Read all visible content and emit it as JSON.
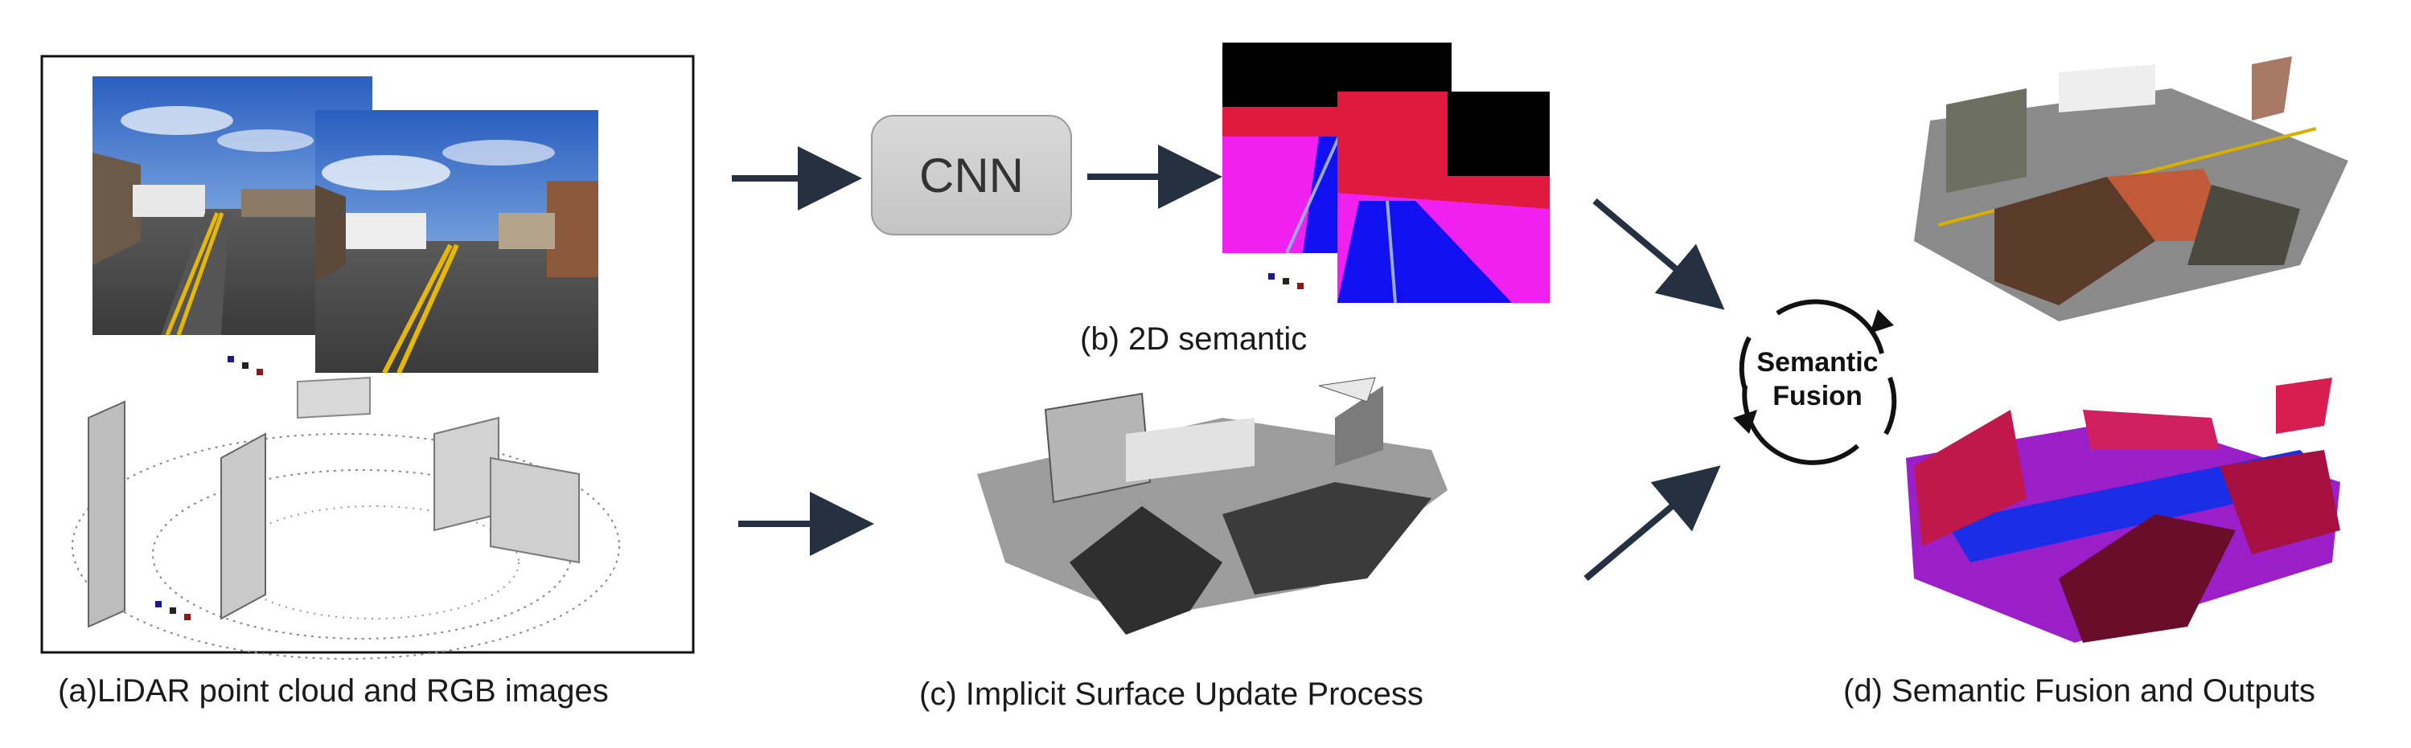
{
  "captions": {
    "a": "(a)LiDAR point cloud and RGB images",
    "b": "(b) 2D semantic",
    "c": "(c) Implicit Surface Update Process",
    "d": "(d) Semantic Fusion and Outputs"
  },
  "cnn_label": "CNN",
  "fusion": {
    "line1": "Semantic",
    "line2": "Fusion"
  },
  "colors": {
    "arrow": "#253040",
    "sky": "#3d6fc4",
    "road": "#4a4a4a",
    "lane": "#e6b800",
    "seg_black": "#000000",
    "seg_red": "#e0193f",
    "seg_magenta": "#f020f0",
    "seg_blue": "#1010f0",
    "out_red": "#c0184a",
    "out_purple": "#9a1fc8",
    "out_blue": "#1a2ee8"
  },
  "icons": [
    "ellipsis-dots-icon",
    "cycle-arrows-icon",
    "arrow-icon"
  ]
}
